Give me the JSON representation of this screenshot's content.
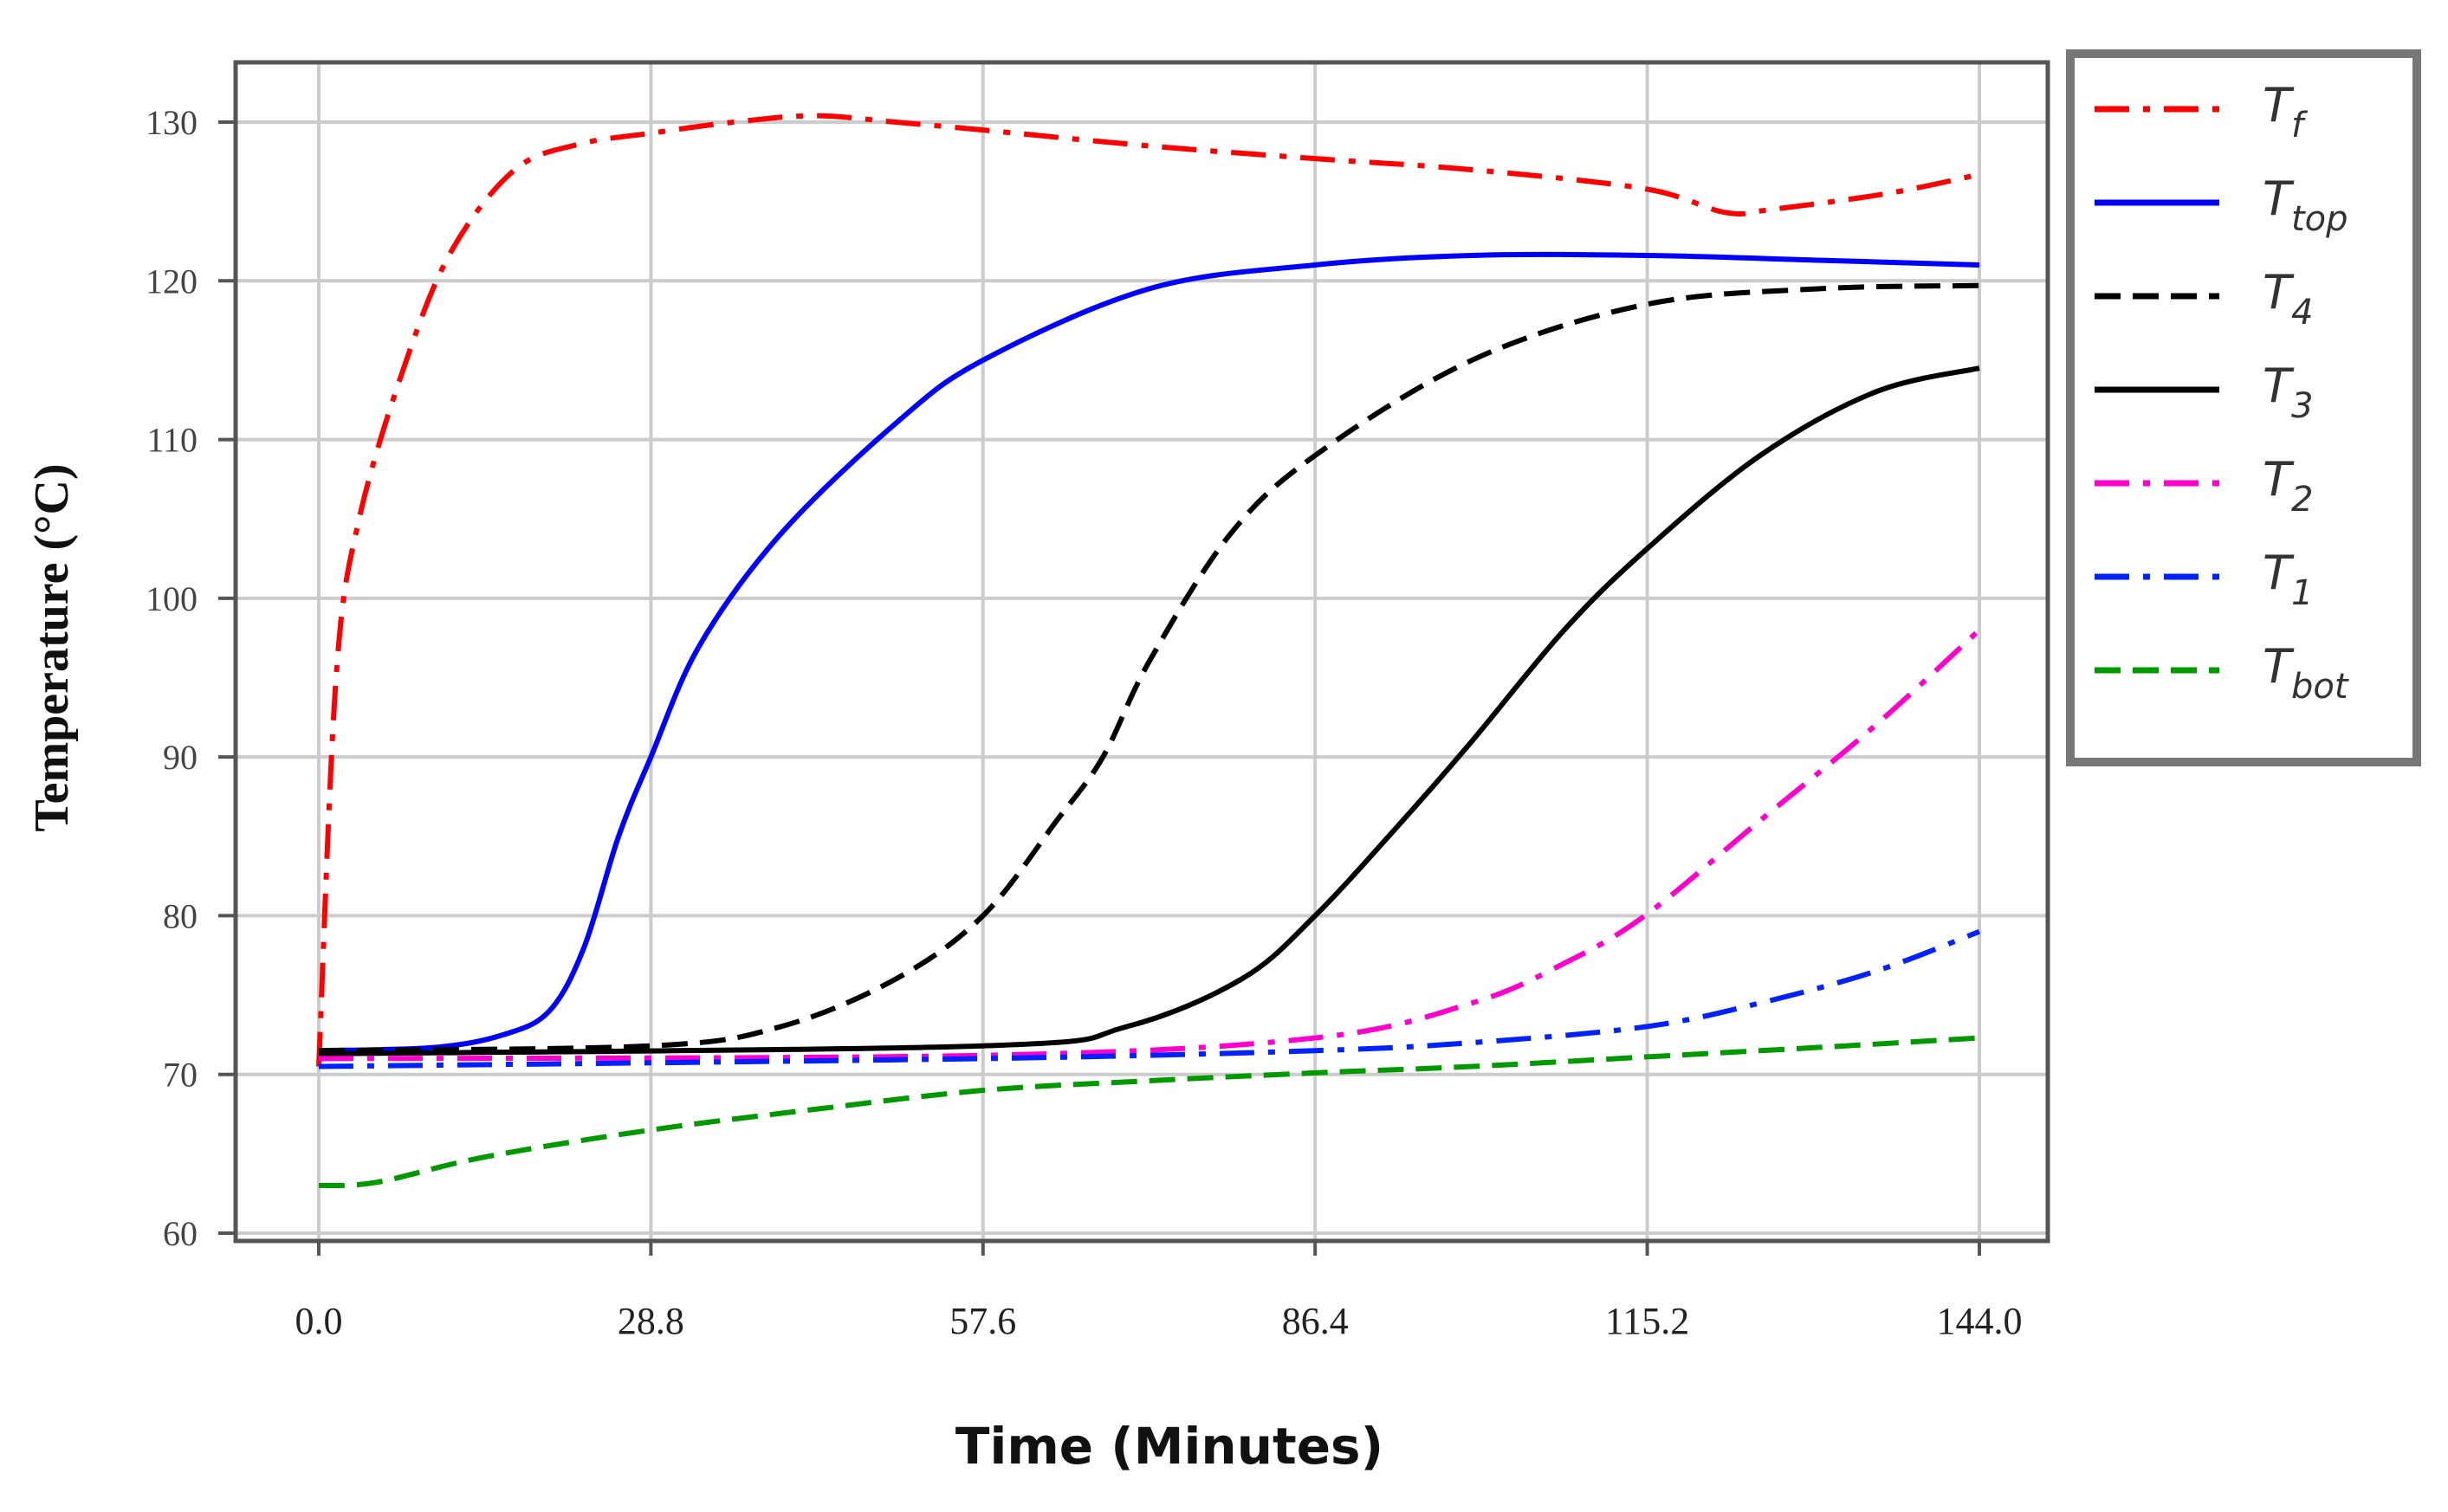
{
  "chart_data": {
    "type": "line",
    "title": "",
    "xlabel": "Time (Minutes)",
    "ylabel": "Temperature (°C)",
    "xlim": [
      0,
      144
    ],
    "ylim": [
      60,
      130
    ],
    "xticks": [
      "0.0",
      "28.8",
      "57.6",
      "86.4",
      "115.2",
      "144.0"
    ],
    "xtick_values": [
      0,
      28.8,
      57.6,
      86.4,
      115.2,
      144
    ],
    "yticks": [
      "60",
      "70",
      "80",
      "90",
      "100",
      "110",
      "120",
      "130"
    ],
    "ytick_values": [
      60,
      70,
      80,
      90,
      100,
      110,
      120,
      130
    ],
    "grid": true,
    "legend_position": "outside-right-top",
    "series": [
      {
        "name": "T_f",
        "base": "T",
        "sub": "f",
        "color": "#ff0000",
        "style": "dashdot",
        "x": [
          0,
          1.5,
          3.5,
          7.6,
          11.6,
          17,
          22.5,
          28.8,
          36,
          43,
          50,
          57.6,
          72,
          86.4,
          100,
          115,
          122,
          126,
          136,
          144
        ],
        "y": [
          70.5,
          95,
          105,
          115,
          122,
          127,
          128.6,
          129.3,
          130,
          130.4,
          130,
          129.5,
          128.5,
          127.7,
          127,
          125.8,
          124.3,
          124.5,
          125.5,
          126.7
        ]
      },
      {
        "name": "T_top",
        "base": "T",
        "sub": "top",
        "color": "#0000ff",
        "style": "solid",
        "x": [
          0,
          10,
          16,
          20,
          23,
          26,
          28.8,
          33,
          40,
          50,
          57.6,
          72,
          86.4,
          100,
          115,
          130,
          144
        ],
        "y": [
          71.5,
          71.7,
          72.5,
          74,
          78,
          85,
          90,
          97,
          104,
          111,
          115,
          119.5,
          121,
          121.6,
          121.6,
          121.3,
          121
        ]
      },
      {
        "name": "T_4",
        "base": "T",
        "sub": "4",
        "color": "#000000",
        "style": "dashed",
        "x": [
          0,
          28.8,
          40,
          50,
          57.6,
          64,
          68,
          72,
          79,
          86.4,
          100,
          115,
          130,
          144
        ],
        "y": [
          71.5,
          71.8,
          73,
          76,
          80,
          86,
          90,
          96,
          104,
          109,
          115,
          118.5,
          119.5,
          119.7
        ]
      },
      {
        "name": "T_3",
        "base": "T",
        "sub": "3",
        "color": "#000000",
        "style": "solid",
        "x": [
          0,
          57.6,
          70,
          80,
          86.4,
          94,
          100,
          108,
          115,
          125,
          135,
          144
        ],
        "y": [
          71.3,
          71.8,
          73,
          76,
          80,
          86,
          91,
          98,
          103,
          109,
          113,
          114.5
        ]
      },
      {
        "name": "T_2",
        "base": "T",
        "sub": "2",
        "color": "#ff00cc",
        "style": "dashdot",
        "x": [
          0,
          57.6,
          86.4,
          100,
          108,
          115,
          125,
          135,
          144
        ],
        "y": [
          71,
          71.2,
          72.3,
          74.5,
          77,
          80,
          86,
          92,
          98
        ]
      },
      {
        "name": "T_1",
        "base": "T",
        "sub": "1",
        "color": "#0022ff",
        "style": "dashdot",
        "x": [
          0,
          57.6,
          86.4,
          100,
          115,
          125,
          135,
          144
        ],
        "y": [
          70.5,
          71,
          71.5,
          72,
          73,
          74.5,
          76.5,
          79
        ]
      },
      {
        "name": "T_bot",
        "base": "T",
        "sub": "bot",
        "color": "#009900",
        "style": "dashed",
        "x": [
          0,
          5,
          14.4,
          28.8,
          43,
          57.6,
          72,
          86.4,
          100,
          115,
          130,
          144
        ],
        "y": [
          63,
          63.2,
          64.8,
          66.5,
          67.8,
          69,
          69.6,
          70.1,
          70.5,
          71.1,
          71.7,
          72.3
        ]
      }
    ]
  }
}
